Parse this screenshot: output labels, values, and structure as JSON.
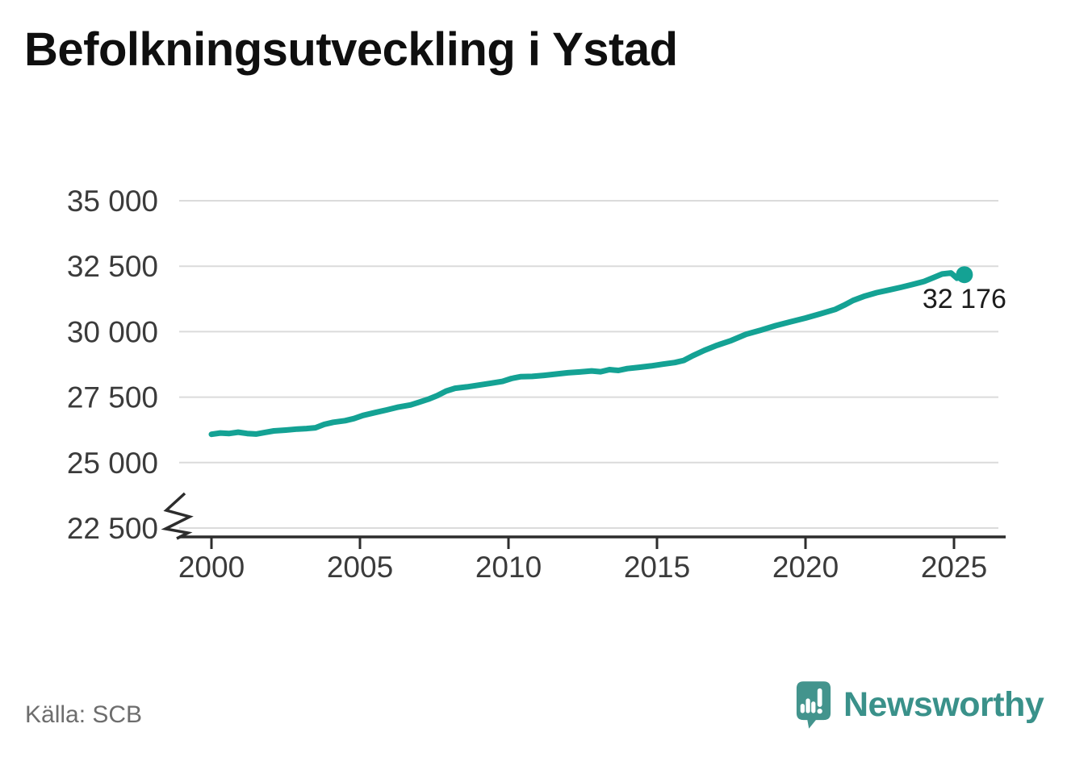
{
  "chart_data": {
    "type": "line",
    "title": "Befolkningsutveckling i Ystad",
    "xlabel": "",
    "ylabel": "",
    "grid": "horizontal",
    "legend": "none",
    "axis_break": true,
    "xlim": [
      1998.9,
      2026.7
    ],
    "ylim": [
      22500,
      35000
    ],
    "x_ticks": [
      {
        "value": 2000,
        "label": "2000"
      },
      {
        "value": 2005,
        "label": "2005"
      },
      {
        "value": 2010,
        "label": "2010"
      },
      {
        "value": 2015,
        "label": "2015"
      },
      {
        "value": 2020,
        "label": "2020"
      },
      {
        "value": 2025,
        "label": "2025"
      }
    ],
    "y_ticks": [
      {
        "value": 35000,
        "label": "35 000"
      },
      {
        "value": 32500,
        "label": "32 500"
      },
      {
        "value": 30000,
        "label": "30 000"
      },
      {
        "value": 27500,
        "label": "27 500"
      },
      {
        "value": 25000,
        "label": "25 000"
      },
      {
        "value": 22500,
        "label": "22 500"
      }
    ],
    "series": [
      {
        "name": "Befolkning",
        "points": [
          [
            2000.0,
            26080
          ],
          [
            2000.3,
            26130
          ],
          [
            2000.6,
            26110
          ],
          [
            2000.9,
            26160
          ],
          [
            2001.2,
            26110
          ],
          [
            2001.5,
            26090
          ],
          [
            2001.8,
            26150
          ],
          [
            2002.1,
            26210
          ],
          [
            2002.5,
            26240
          ],
          [
            2002.9,
            26280
          ],
          [
            2003.2,
            26300
          ],
          [
            2003.5,
            26330
          ],
          [
            2003.8,
            26460
          ],
          [
            2004.1,
            26540
          ],
          [
            2004.5,
            26600
          ],
          [
            2004.8,
            26680
          ],
          [
            2005.1,
            26800
          ],
          [
            2005.5,
            26910
          ],
          [
            2005.9,
            27010
          ],
          [
            2006.3,
            27120
          ],
          [
            2006.7,
            27200
          ],
          [
            2007.0,
            27310
          ],
          [
            2007.3,
            27420
          ],
          [
            2007.6,
            27560
          ],
          [
            2007.9,
            27730
          ],
          [
            2008.2,
            27840
          ],
          [
            2008.6,
            27890
          ],
          [
            2009.0,
            27960
          ],
          [
            2009.4,
            28030
          ],
          [
            2009.8,
            28100
          ],
          [
            2010.1,
            28210
          ],
          [
            2010.4,
            28280
          ],
          [
            2010.8,
            28290
          ],
          [
            2011.2,
            28330
          ],
          [
            2011.6,
            28380
          ],
          [
            2012.0,
            28430
          ],
          [
            2012.4,
            28460
          ],
          [
            2012.8,
            28500
          ],
          [
            2013.1,
            28470
          ],
          [
            2013.4,
            28550
          ],
          [
            2013.7,
            28520
          ],
          [
            2014.0,
            28590
          ],
          [
            2014.4,
            28640
          ],
          [
            2014.8,
            28690
          ],
          [
            2015.2,
            28760
          ],
          [
            2015.6,
            28820
          ],
          [
            2015.9,
            28900
          ],
          [
            2016.2,
            29080
          ],
          [
            2016.6,
            29290
          ],
          [
            2017.0,
            29470
          ],
          [
            2017.5,
            29660
          ],
          [
            2018.0,
            29900
          ],
          [
            2018.5,
            30060
          ],
          [
            2019.0,
            30230
          ],
          [
            2019.5,
            30380
          ],
          [
            2020.0,
            30520
          ],
          [
            2020.5,
            30680
          ],
          [
            2021.0,
            30850
          ],
          [
            2021.3,
            31010
          ],
          [
            2021.6,
            31190
          ],
          [
            2022.0,
            31360
          ],
          [
            2022.4,
            31490
          ],
          [
            2022.8,
            31590
          ],
          [
            2023.2,
            31690
          ],
          [
            2023.6,
            31800
          ],
          [
            2024.0,
            31920
          ],
          [
            2024.3,
            32060
          ],
          [
            2024.6,
            32200
          ],
          [
            2024.9,
            32240
          ],
          [
            2025.1,
            32040
          ],
          [
            2025.35,
            32176
          ]
        ]
      }
    ],
    "last_point": {
      "x": 2025.35,
      "value": 32176
    },
    "annotation": "32 176",
    "line_color": "#14a294",
    "grid_color": "#dbdbdb",
    "axis_color": "#2d2d2d"
  },
  "source": "Källa: SCB",
  "brand": "Newsworthy",
  "brand_color": "#3a918a"
}
